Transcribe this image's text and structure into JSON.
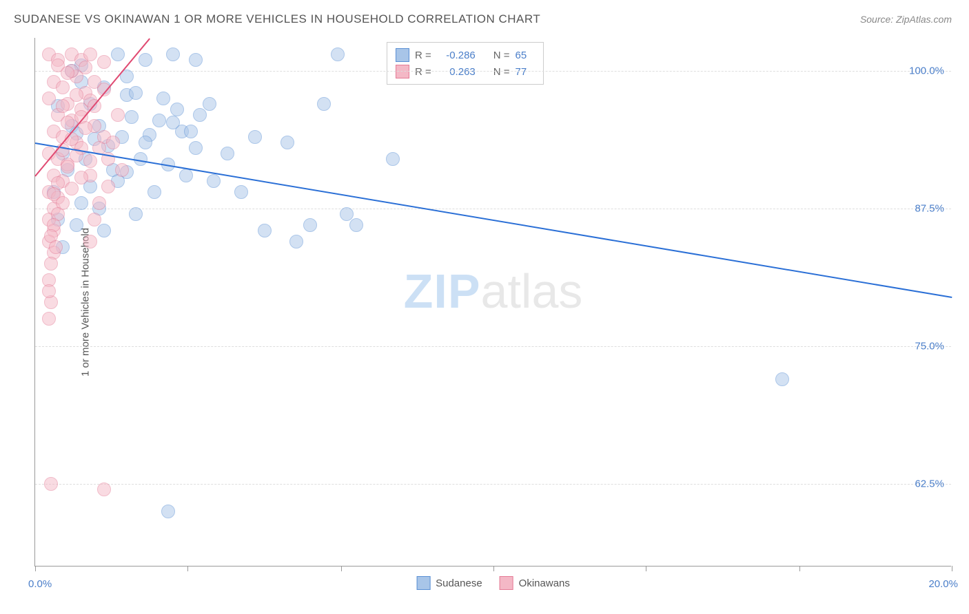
{
  "title": "SUDANESE VS OKINAWAN 1 OR MORE VEHICLES IN HOUSEHOLD CORRELATION CHART",
  "source": "Source: ZipAtlas.com",
  "y_axis_title": "1 or more Vehicles in Household",
  "watermark": {
    "zip": "ZIP",
    "atlas": "atlas"
  },
  "chart": {
    "type": "scatter",
    "xlim": [
      0,
      20
    ],
    "ylim": [
      55,
      103
    ],
    "x_ticks": [
      0,
      3.33,
      6.67,
      10,
      13.33,
      16.67,
      20
    ],
    "x_labels": {
      "min": "0.0%",
      "max": "20.0%"
    },
    "y_gridlines": [
      62.5,
      75.0,
      87.5,
      100.0
    ],
    "y_labels": [
      "62.5%",
      "75.0%",
      "87.5%",
      "100.0%"
    ],
    "background_color": "#ffffff",
    "grid_color": "#dddddd",
    "marker_radius": 10,
    "marker_opacity": 0.5,
    "series": [
      {
        "name": "Sudanese",
        "color_fill": "#a8c5e8",
        "color_stroke": "#5a8fd4",
        "R": "-0.286",
        "N": "65",
        "trend": {
          "x1": 0,
          "y1": 93.5,
          "x2": 20,
          "y2": 79.5,
          "color": "#2a6fd6",
          "width": 2
        },
        "points": [
          [
            0.8,
            100.0
          ],
          [
            1.8,
            101.5
          ],
          [
            2.4,
            101.0
          ],
          [
            3.0,
            101.5
          ],
          [
            3.5,
            101.0
          ],
          [
            6.6,
            101.5
          ],
          [
            1.0,
            99.0
          ],
          [
            1.5,
            98.5
          ],
          [
            2.0,
            97.8
          ],
          [
            1.2,
            97.0
          ],
          [
            0.5,
            96.8
          ],
          [
            2.2,
            98.0
          ],
          [
            0.8,
            95.0
          ],
          [
            1.4,
            95.0
          ],
          [
            1.9,
            94.0
          ],
          [
            2.5,
            94.2
          ],
          [
            3.1,
            96.5
          ],
          [
            3.8,
            97.0
          ],
          [
            0.6,
            92.5
          ],
          [
            1.1,
            92.0
          ],
          [
            1.7,
            91.0
          ],
          [
            2.0,
            90.8
          ],
          [
            2.4,
            93.5
          ],
          [
            3.2,
            94.5
          ],
          [
            1.3,
            93.8
          ],
          [
            2.7,
            95.5
          ],
          [
            3.0,
            95.3
          ],
          [
            3.4,
            94.5
          ],
          [
            3.5,
            93.0
          ],
          [
            2.1,
            95.8
          ],
          [
            0.9,
            94.3
          ],
          [
            1.6,
            93.2
          ],
          [
            2.3,
            92.0
          ],
          [
            2.9,
            91.5
          ],
          [
            3.3,
            90.5
          ],
          [
            0.7,
            91.0
          ],
          [
            1.2,
            89.5
          ],
          [
            1.8,
            90.0
          ],
          [
            0.5,
            86.5
          ],
          [
            0.9,
            86.0
          ],
          [
            4.2,
            92.5
          ],
          [
            5.5,
            93.5
          ],
          [
            5.7,
            84.5
          ],
          [
            6.3,
            97.0
          ],
          [
            6.0,
            86.0
          ],
          [
            6.8,
            87.0
          ],
          [
            7.0,
            86.0
          ],
          [
            5.0,
            85.5
          ],
          [
            7.8,
            92.0
          ],
          [
            16.3,
            72.0
          ],
          [
            2.9,
            60.0
          ],
          [
            1.5,
            85.5
          ],
          [
            2.2,
            87.0
          ],
          [
            0.4,
            89.0
          ],
          [
            1.0,
            88.0
          ],
          [
            0.6,
            84.0
          ],
          [
            3.9,
            90.0
          ],
          [
            2.6,
            89.0
          ],
          [
            1.4,
            87.5
          ],
          [
            4.5,
            89.0
          ],
          [
            2.8,
            97.5
          ],
          [
            3.6,
            96.0
          ],
          [
            2.0,
            99.5
          ],
          [
            1.0,
            100.5
          ],
          [
            4.8,
            94.0
          ]
        ]
      },
      {
        "name": "Okinawans",
        "color_fill": "#f4b8c6",
        "color_stroke": "#e47a95",
        "R": "0.263",
        "N": "77",
        "trend": {
          "x1": 0,
          "y1": 90.5,
          "x2": 2.5,
          "y2": 103.0,
          "color": "#e04a72",
          "width": 2
        },
        "points": [
          [
            0.3,
            101.5
          ],
          [
            0.5,
            101.0
          ],
          [
            0.8,
            101.5
          ],
          [
            1.0,
            101.0
          ],
          [
            1.2,
            101.5
          ],
          [
            1.5,
            100.8
          ],
          [
            0.4,
            99.0
          ],
          [
            0.6,
            98.5
          ],
          [
            0.9,
            99.5
          ],
          [
            1.1,
            98.0
          ],
          [
            0.3,
            97.5
          ],
          [
            0.7,
            97.0
          ],
          [
            0.5,
            96.0
          ],
          [
            0.8,
            95.5
          ],
          [
            1.0,
            96.5
          ],
          [
            0.4,
            94.5
          ],
          [
            0.6,
            94.0
          ],
          [
            0.9,
            93.5
          ],
          [
            0.3,
            92.5
          ],
          [
            0.5,
            92.0
          ],
          [
            0.7,
            91.5
          ],
          [
            0.4,
            90.5
          ],
          [
            0.6,
            90.0
          ],
          [
            0.3,
            89.0
          ],
          [
            0.5,
            88.5
          ],
          [
            0.4,
            87.5
          ],
          [
            0.3,
            86.5
          ],
          [
            0.4,
            85.5
          ],
          [
            0.3,
            84.5
          ],
          [
            0.4,
            83.5
          ],
          [
            0.3,
            81.0
          ],
          [
            0.35,
            79.0
          ],
          [
            0.3,
            77.5
          ],
          [
            1.3,
            95.0
          ],
          [
            1.5,
            94.0
          ],
          [
            1.4,
            93.0
          ],
          [
            1.6,
            92.0
          ],
          [
            1.2,
            90.5
          ],
          [
            0.35,
            62.5
          ],
          [
            1.5,
            62.0
          ],
          [
            0.8,
            100.0
          ],
          [
            1.1,
            100.3
          ],
          [
            0.5,
            100.5
          ],
          [
            0.7,
            99.8
          ],
          [
            1.3,
            99.0
          ],
          [
            1.5,
            98.3
          ],
          [
            0.9,
            97.8
          ],
          [
            1.2,
            97.3
          ],
          [
            0.6,
            96.8
          ],
          [
            1.0,
            95.8
          ],
          [
            1.3,
            96.8
          ],
          [
            0.7,
            95.3
          ],
          [
            1.1,
            94.8
          ],
          [
            0.8,
            93.8
          ],
          [
            1.0,
            93.0
          ],
          [
            0.6,
            92.8
          ],
          [
            0.9,
            92.3
          ],
          [
            1.2,
            91.8
          ],
          [
            0.7,
            91.3
          ],
          [
            1.0,
            90.3
          ],
          [
            0.5,
            89.8
          ],
          [
            0.8,
            89.3
          ],
          [
            0.4,
            88.8
          ],
          [
            0.6,
            88.0
          ],
          [
            0.5,
            87.0
          ],
          [
            0.4,
            86.0
          ],
          [
            0.35,
            85.0
          ],
          [
            0.45,
            84.0
          ],
          [
            0.35,
            82.5
          ],
          [
            0.3,
            80.0
          ],
          [
            1.8,
            96.0
          ],
          [
            1.7,
            93.5
          ],
          [
            1.9,
            91.0
          ],
          [
            1.6,
            89.5
          ],
          [
            1.4,
            88.0
          ],
          [
            1.3,
            86.5
          ],
          [
            1.2,
            84.5
          ]
        ]
      }
    ]
  },
  "legend": {
    "r_label": "R =",
    "n_label": "N ="
  },
  "bottom_legend": {
    "sudanese": "Sudanese",
    "okinawans": "Okinawans"
  }
}
